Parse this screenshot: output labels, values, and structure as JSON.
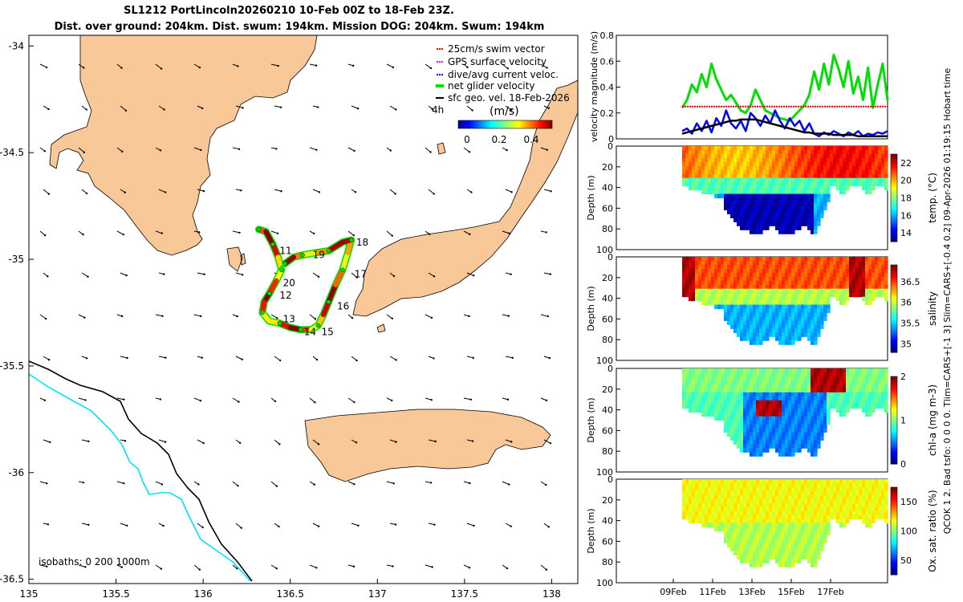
{
  "title": {
    "line1": "SL1212 PortLincoln20260210 10-Feb 00Z to 18-Feb 23Z.",
    "line2": "Dist. over ground: 204km. Dist. swum: 194km. Mission DOG: 204km. Swum: 194km"
  },
  "side_note": "QCOK 1  2. Bad tsfo:  0  0  0  0. Tlim=CARS+[-1 3] Slim=CARS+[-0.4 0.2] 09-Apr-2026 01:19:15 Hobart time",
  "colors": {
    "land": "#f8c898",
    "track": "#8b0000",
    "current": "#0000ff",
    "glider": "#00dd00",
    "swim": "#ff0000",
    "gps": "#ff00ff",
    "sfc": "#000000",
    "isobath200": "#00e5ee"
  },
  "chart_data": [
    {
      "type": "map",
      "xlim": [
        135,
        138.15
      ],
      "ylim": [
        -36.52,
        -33.95
      ],
      "xticks": [
        "135",
        "135.5",
        "136",
        "136.5",
        "137",
        "137.5",
        "138"
      ],
      "yticks": [
        "-34",
        "-34.5",
        "-35",
        "-35.5",
        "-36",
        "-36.5"
      ],
      "legend": {
        "position": "top-right",
        "items": [
          {
            "label": "25cm/s swim vector",
            "color": "#ff0000"
          },
          {
            "label": "GPS surface velocity",
            "color": "#ff00ff"
          },
          {
            "label": "dive/avg current veloc.",
            "color": "#0000ff"
          },
          {
            "label": "net glider velocity",
            "color": "#00dd00"
          },
          {
            "label": "sfc geo. vel. 18-Feb-2026",
            "color": "#000000"
          }
        ]
      },
      "colorbar": {
        "label": "(m/s)",
        "prefix": "4h",
        "ticks": [
          "0",
          "0.2",
          "0.4"
        ],
        "range": [
          0,
          0.5
        ]
      },
      "isobaths_label": "isobaths: 0   200  1000m",
      "day_labels": [
        {
          "label": "11",
          "lon": 136.42,
          "lat": -34.96
        },
        {
          "label": "12",
          "lon": 136.42,
          "lat": -35.17
        },
        {
          "label": "13",
          "lon": 136.44,
          "lat": -35.28
        },
        {
          "label": "14",
          "lon": 136.56,
          "lat": -35.34
        },
        {
          "label": "15",
          "lon": 136.66,
          "lat": -35.34
        },
        {
          "label": "16",
          "lon": 136.75,
          "lat": -35.22
        },
        {
          "label": "17",
          "lon": 136.85,
          "lat": -35.07
        },
        {
          "label": "18",
          "lon": 136.86,
          "lat": -34.92
        },
        {
          "label": "19",
          "lon": 136.61,
          "lat": -34.98
        },
        {
          "label": "20",
          "lon": 136.44,
          "lat": -35.11
        }
      ],
      "track": [
        [
          136.32,
          -34.86
        ],
        [
          136.36,
          -34.87
        ],
        [
          136.4,
          -34.93
        ],
        [
          136.43,
          -34.99
        ],
        [
          136.45,
          -35.05
        ],
        [
          136.42,
          -35.1
        ],
        [
          136.38,
          -35.16
        ],
        [
          136.35,
          -35.2
        ],
        [
          136.34,
          -35.25
        ],
        [
          136.38,
          -35.29
        ],
        [
          136.44,
          -35.3
        ],
        [
          136.5,
          -35.32
        ],
        [
          136.56,
          -35.33
        ],
        [
          136.62,
          -35.33
        ],
        [
          136.66,
          -35.31
        ],
        [
          136.69,
          -35.26
        ],
        [
          136.72,
          -35.2
        ],
        [
          136.76,
          -35.12
        ],
        [
          136.8,
          -35.05
        ],
        [
          136.83,
          -34.97
        ],
        [
          136.85,
          -34.91
        ],
        [
          136.8,
          -34.92
        ],
        [
          136.72,
          -34.96
        ],
        [
          136.64,
          -34.97
        ],
        [
          136.57,
          -34.98
        ],
        [
          136.52,
          -34.99
        ],
        [
          136.47,
          -35.02
        ]
      ]
    },
    {
      "type": "line",
      "ylabel": "velocity magnitude (m/s)",
      "ylim": [
        0,
        0.8
      ],
      "yticks": [
        "0",
        "0.2",
        "0.4",
        "0.6",
        "0.8"
      ],
      "x_start_day": 10.0,
      "x_end_day": 19.0,
      "series": [
        {
          "name": "net glider velocity",
          "color": "#00dd00",
          "values": [
            0.24,
            0.3,
            0.42,
            0.36,
            0.5,
            0.4,
            0.58,
            0.46,
            0.38,
            0.3,
            0.34,
            0.28,
            0.22,
            0.2,
            0.26,
            0.38,
            0.3,
            0.22,
            0.2,
            0.18,
            0.16,
            0.15,
            0.14,
            0.18,
            0.22,
            0.26,
            0.34,
            0.52,
            0.38,
            0.58,
            0.42,
            0.65,
            0.54,
            0.4,
            0.6,
            0.35,
            0.48,
            0.3,
            0.55,
            0.24,
            0.42,
            0.58,
            0.3
          ]
        },
        {
          "name": "25cm/s swim vector",
          "color": "#ff0000",
          "values": [
            0.25,
            0.25,
            0.25,
            0.25,
            0.25,
            0.25,
            0.25,
            0.25,
            0.25,
            0.25,
            0.25,
            0.25,
            0.25,
            0.25,
            0.25,
            0.25,
            0.25,
            0.25,
            0.25,
            0.25,
            0.25,
            0.25,
            0.25,
            0.25,
            0.25,
            0.25,
            0.25,
            0.25,
            0.25,
            0.25,
            0.25,
            0.25,
            0.25,
            0.25,
            0.25,
            0.25,
            0.25,
            0.25,
            0.25,
            0.25,
            0.25,
            0.25,
            0.25
          ]
        },
        {
          "name": "dive/avg current veloc.",
          "color": "#0000ff",
          "values": [
            0.06,
            0.08,
            0.04,
            0.12,
            0.06,
            0.14,
            0.05,
            0.16,
            0.1,
            0.22,
            0.12,
            0.08,
            0.14,
            0.06,
            0.2,
            0.16,
            0.1,
            0.18,
            0.12,
            0.22,
            0.14,
            0.08,
            0.16,
            0.1,
            0.14,
            0.06,
            0.12,
            0.04,
            0.02,
            0.05,
            0.03,
            0.06,
            0.04,
            0.02,
            0.05,
            0.03,
            0.06,
            0.02,
            0.04,
            0.03,
            0.05,
            0.04,
            0.06
          ]
        },
        {
          "name": "sfc geo. vel.",
          "color": "#000000",
          "values": [
            0.04,
            0.05,
            0.06,
            0.07,
            0.08,
            0.09,
            0.1,
            0.11,
            0.12,
            0.13,
            0.14,
            0.14,
            0.15,
            0.15,
            0.15,
            0.15,
            0.14,
            0.13,
            0.12,
            0.11,
            0.1,
            0.09,
            0.08,
            0.07,
            0.06,
            0.05,
            0.05,
            0.04,
            0.04,
            0.04,
            0.04,
            0.03,
            0.03,
            0.03,
            0.03,
            0.03,
            0.02,
            0.02,
            0.02,
            0.02,
            0.02,
            0.02,
            0.02
          ]
        }
      ]
    },
    {
      "type": "heatmap",
      "variable": "temperature",
      "ylabel": "Depth (m)",
      "yticks": [
        "0",
        "20",
        "40",
        "60",
        "80",
        "100"
      ],
      "ylim": [
        0,
        100
      ],
      "colorbar_label": "temp. (°C)",
      "colorbar_ticks": [
        "14",
        "16",
        "18",
        "20",
        "22"
      ],
      "crange": [
        13,
        23
      ]
    },
    {
      "type": "heatmap",
      "variable": "salinity",
      "ylabel": "Depth (m)",
      "yticks": [
        "0",
        "20",
        "40",
        "60",
        "80",
        "100"
      ],
      "ylim": [
        0,
        100
      ],
      "colorbar_label": "salinity",
      "colorbar_ticks": [
        "35",
        "35.5",
        "36",
        "36.5"
      ],
      "crange": [
        34.8,
        36.9
      ]
    },
    {
      "type": "heatmap",
      "variable": "chlorophyll",
      "ylabel": "Depth (m)",
      "yticks": [
        "0",
        "20",
        "40",
        "60",
        "80",
        "100"
      ],
      "ylim": [
        0,
        100
      ],
      "colorbar_label": "chl-a (mg m-3)",
      "colorbar_ticks": [
        "0",
        "1",
        "2"
      ],
      "crange": [
        0,
        2
      ]
    },
    {
      "type": "heatmap",
      "variable": "oxygen",
      "ylabel": "Depth (m)",
      "yticks": [
        "0",
        "20",
        "40",
        "60",
        "80",
        "100"
      ],
      "ylim": [
        0,
        100
      ],
      "colorbar_label": "Ox. sat. ratio (%)",
      "colorbar_ticks": [
        "50",
        "100",
        "150"
      ],
      "crange": [
        25,
        175
      ],
      "xticks": [
        "09Feb",
        "11Feb",
        "13Feb",
        "15Feb",
        "17Feb"
      ],
      "xtick_days": [
        9,
        11,
        13,
        15,
        17
      ]
    }
  ]
}
